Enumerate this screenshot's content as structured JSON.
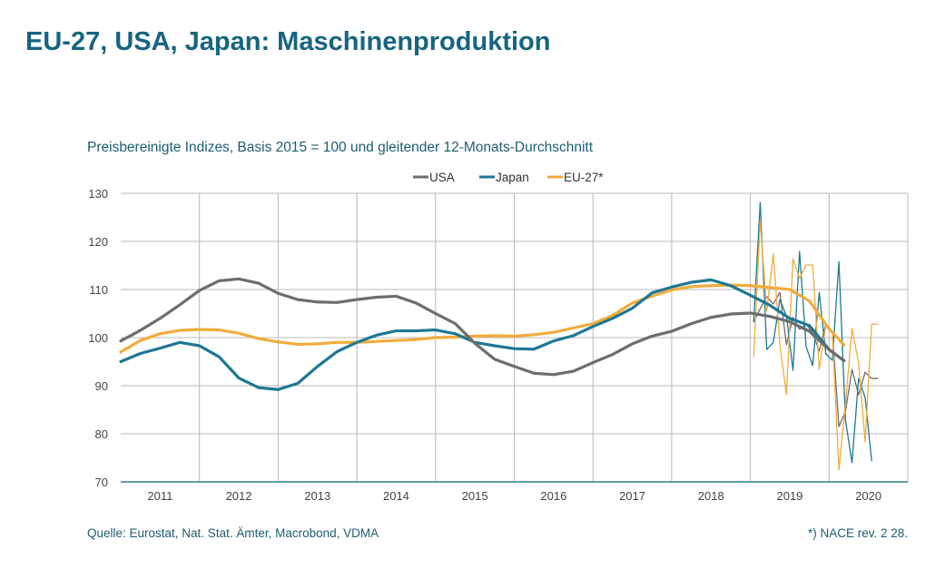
{
  "title": "EU-27, USA, Japan: Maschinenproduktion",
  "subtitle": "Preisbereinigte Indizes, Basis 2015 = 100 und gleitender 12-Monats-Durchschnitt",
  "source": "Quelle: Eurostat, Nat. Stat. Ämter, Macrobond, VDMA",
  "footnote": "*) NACE rev. 2 28.",
  "chart_data": {
    "type": "line",
    "title": "",
    "xlabel": "",
    "ylabel": "",
    "ylim": [
      70,
      130
    ],
    "xlim": [
      2011,
      2021
    ],
    "yticks": [
      "70",
      "80",
      "90",
      "100",
      "110",
      "120",
      "130"
    ],
    "xticks": [
      "2011",
      "2012",
      "2013",
      "2014",
      "2015",
      "2016",
      "2017",
      "2018",
      "2019",
      "2020"
    ],
    "grid": true,
    "legend": "top",
    "moving_average_x": [
      2011.0,
      2011.25,
      2011.5,
      2011.75,
      2012.0,
      2012.25,
      2012.5,
      2012.75,
      2013.0,
      2013.25,
      2013.5,
      2013.75,
      2014.0,
      2014.25,
      2014.5,
      2014.75,
      2015.0,
      2015.25,
      2015.5,
      2015.75,
      2016.0,
      2016.25,
      2016.5,
      2016.75,
      2017.0,
      2017.25,
      2017.5,
      2017.75,
      2018.0,
      2018.25,
      2018.5,
      2018.75,
      2019.0,
      2019.25,
      2019.5,
      2019.75,
      2020.0,
      2020.19
    ],
    "series": [
      {
        "name": "USA",
        "color": "#6d6d6d",
        "moving_average": [
          99.3,
          101.5,
          104,
          106.8,
          109.8,
          111.8,
          112.2,
          111.3,
          109.2,
          107.9,
          107.4,
          107.3,
          107.9,
          108.4,
          108.6,
          107.2,
          105,
          102.9,
          98.8,
          95.5,
          94,
          92.6,
          92.3,
          93,
          94.8,
          96.5,
          98.7,
          100.3,
          101.3,
          102.9,
          104.2,
          104.9,
          105.1,
          104.4,
          103.3,
          101.3,
          97.5,
          95.2
        ],
        "monthly_start": "2019-01",
        "monthly": [
          103.2,
          106,
          108.5,
          107,
          109.4,
          98.5,
          104.2,
          101.7,
          102.8,
          101,
          97.2,
          102.8,
          101.3,
          81.5,
          84.7,
          93.4,
          88.1,
          92.8,
          91.5,
          91.5
        ]
      },
      {
        "name": "Japan",
        "color": "#1e7894",
        "moving_average": [
          95,
          96.7,
          97.8,
          99,
          98.3,
          96,
          91.6,
          89.6,
          89.2,
          90.5,
          94,
          97.1,
          99,
          100.5,
          101.4,
          101.4,
          101.6,
          100.8,
          99,
          98.3,
          97.7,
          97.6,
          99.3,
          100.4,
          102.3,
          104,
          106.1,
          109.3,
          110.5,
          111.5,
          112,
          110.8,
          108.8,
          106.7,
          104,
          102.5,
          97.5,
          95.2
        ],
        "monthly_start": "2019-01",
        "monthly": [
          103.2,
          128.1,
          97.5,
          99,
          107.9,
          104.5,
          93.2,
          117.9,
          98.1,
          94.2,
          109.4,
          96.6,
          95.3,
          115.8,
          82.8,
          74,
          91.5,
          87.5,
          74.3
        ]
      },
      {
        "name": "EU-27*",
        "color": "#f0ac3c",
        "moving_average": [
          97,
          99.4,
          100.8,
          101.5,
          101.7,
          101.6,
          100.9,
          99.8,
          99.1,
          98.6,
          98.7,
          99,
          99,
          99.2,
          99.4,
          99.6,
          100,
          100.1,
          100.3,
          100.4,
          100.3,
          100.6,
          101.1,
          102,
          102.9,
          104.6,
          107.2,
          108.6,
          109.9,
          110.6,
          110.8,
          110.9,
          110.8,
          110.4,
          110,
          107.6,
          101.8,
          98.5
        ],
        "monthly_start": "2019-01",
        "monthly": [
          96,
          124.3,
          105.5,
          117.4,
          98.5,
          88.1,
          116.4,
          112.3,
          115.1,
          115.1,
          93.4,
          102.6,
          101,
          72.5,
          86.2,
          101.9,
          94.7,
          78.3,
          102.8,
          102.8
        ]
      }
    ]
  }
}
